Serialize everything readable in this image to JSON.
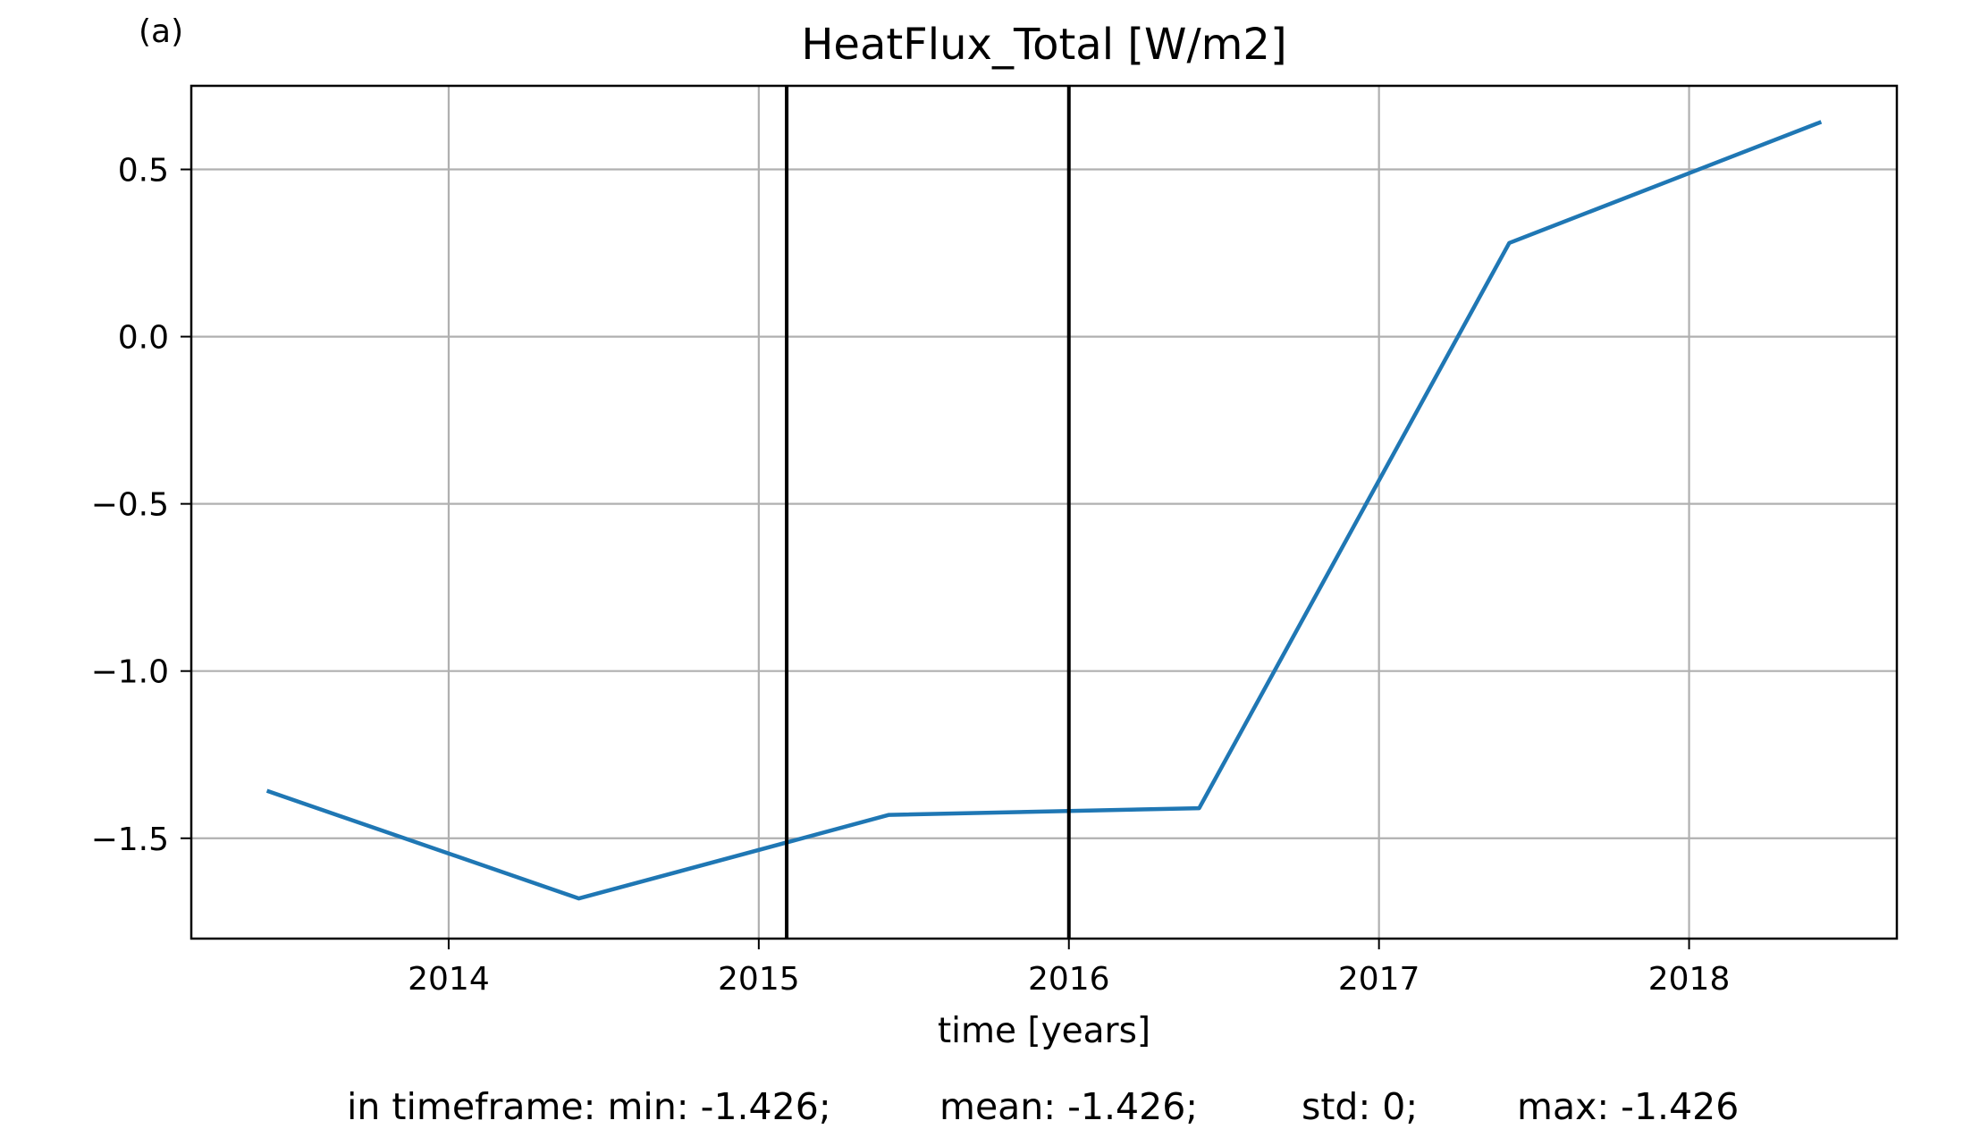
{
  "panel_label": "(a)",
  "stats": {
    "prefix": "in timeframe:",
    "min": "min: -1.426;",
    "mean": "mean: -1.426;",
    "std": "std: 0;",
    "max": "max: -1.426"
  },
  "colors": {
    "series": "#1f77b4",
    "grid": "#b0b0b0",
    "vline": "#000000"
  },
  "chart_data": {
    "type": "line",
    "title": "HeatFlux_Total [W/m2]",
    "xlabel": "time [years]",
    "ylabel": "",
    "xlim": [
      2013.17,
      2018.67
    ],
    "ylim": [
      -1.8,
      0.75
    ],
    "x_ticks": [
      2014,
      2015,
      2016,
      2017,
      2018
    ],
    "x_tick_labels": [
      "2014",
      "2015",
      "2016",
      "2017",
      "2018"
    ],
    "y_ticks": [
      0.5,
      0.0,
      -0.5,
      -1.0,
      -1.5
    ],
    "y_tick_labels": [
      "0.5",
      "0.0",
      "−0.5",
      "−1.0",
      "−1.5"
    ],
    "grid": true,
    "series": [
      {
        "x": [
          2013.42,
          2014.42,
          2015.42,
          2016.42,
          2017.42,
          2018.42
        ],
        "y": [
          -1.36,
          -1.68,
          -1.43,
          -1.41,
          0.28,
          0.64
        ]
      }
    ],
    "vertical_lines": [
      2015.09,
      2016.0
    ]
  }
}
